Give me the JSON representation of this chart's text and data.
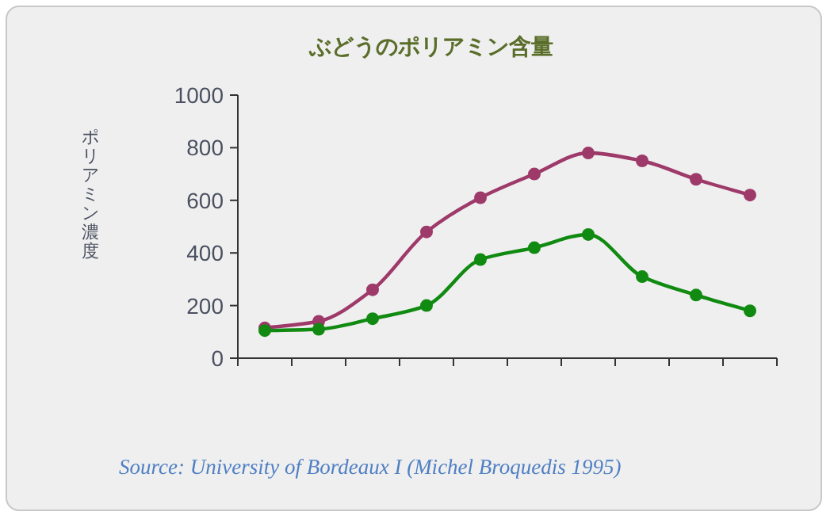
{
  "chart_data": {
    "type": "line",
    "title": "ぶどうのポリアミン含量",
    "ylabel": "ポリアミン濃度",
    "annotations": [
      "Source: University of Bordeaux I (Michel Broquedis 1995)"
    ],
    "categories": [
      null,
      null,
      null,
      null,
      null,
      null,
      null,
      null,
      null,
      null
    ],
    "series": [
      {
        "color": "#9e3a6a",
        "values": [
          115,
          140,
          260,
          480,
          610,
          700,
          780,
          750,
          680,
          620
        ]
      },
      {
        "color": "#108a10",
        "values": [
          105,
          110,
          150,
          200,
          375,
          420,
          470,
          310,
          240,
          180
        ]
      }
    ],
    "ylim": [
      0,
      1000
    ],
    "yticks": [
      0,
      200,
      400,
      600,
      800,
      1000
    ],
    "grid": false,
    "marker": "circle",
    "line_style": "solid"
  }
}
